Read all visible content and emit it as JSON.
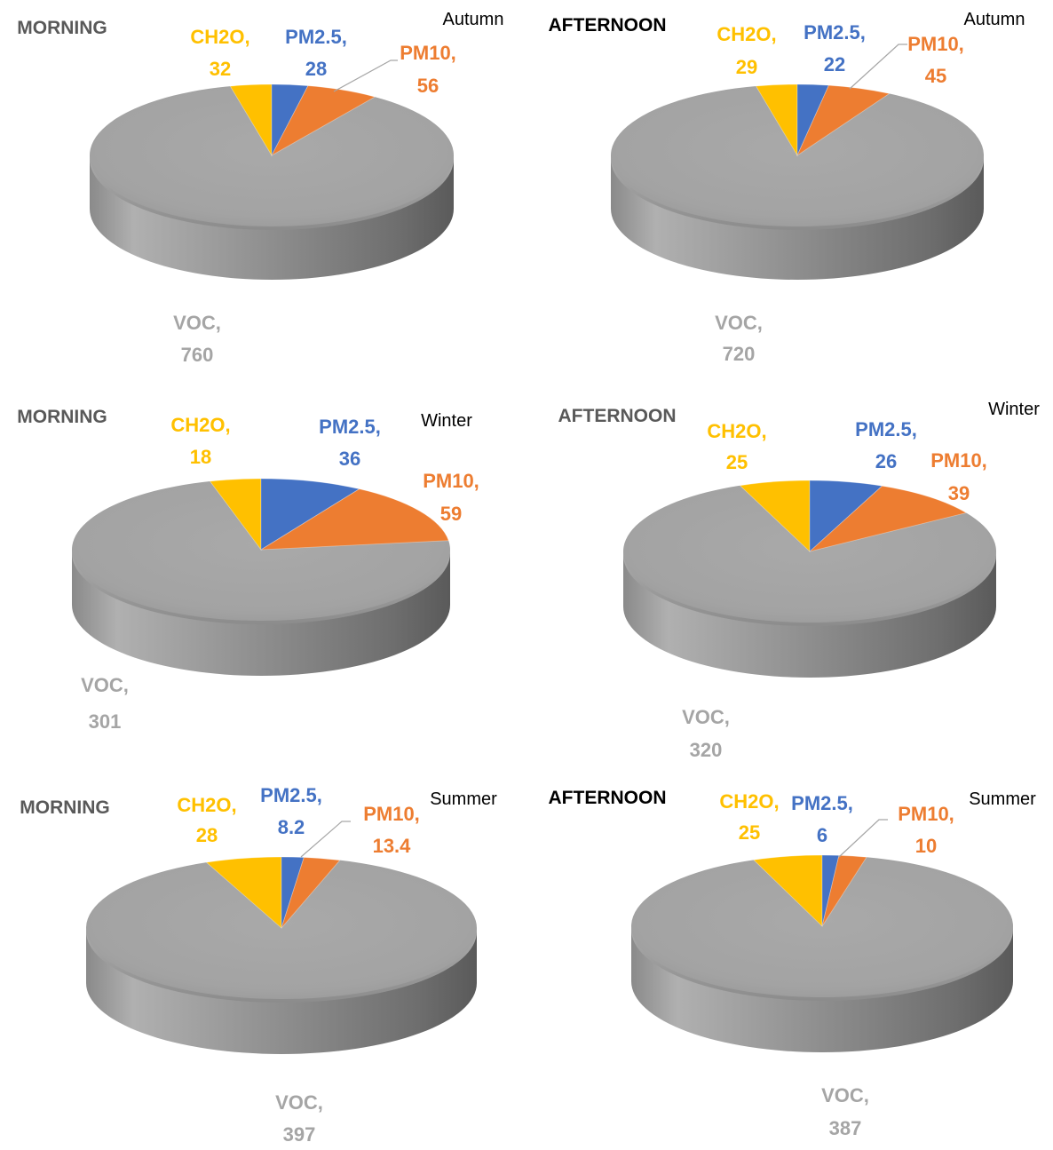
{
  "colors": {
    "VOC": "#a5a5a5",
    "CH2O": "#ffc000",
    "PM2.5": "#4472c4",
    "PM10": "#ed7d31",
    "period_label": "#595959",
    "period_label_bold": "#000000",
    "season_label": "#000000",
    "voc_label": "#a5a5a5"
  },
  "chart_data": [
    {
      "type": "pie",
      "period": "MORNING",
      "season": "Autumn",
      "slices": [
        {
          "name": "VOC",
          "value": 760,
          "label": "VOC,",
          "value_label": "760"
        },
        {
          "name": "CH2O",
          "value": 32,
          "label": "CH2O,",
          "value_label": "32"
        },
        {
          "name": "PM2.5",
          "value": 28,
          "label": "PM2.5,",
          "value_label": "28"
        },
        {
          "name": "PM10",
          "value": 56,
          "label": "PM10,",
          "value_label": "56"
        }
      ]
    },
    {
      "type": "pie",
      "period": "AFTERNOON",
      "season": "Autumn",
      "slices": [
        {
          "name": "VOC",
          "value": 720,
          "label": "VOC,",
          "value_label": "720"
        },
        {
          "name": "CH2O",
          "value": 29,
          "label": "CH2O,",
          "value_label": "29"
        },
        {
          "name": "PM2.5",
          "value": 22,
          "label": "PM2.5,",
          "value_label": "22"
        },
        {
          "name": "PM10",
          "value": 45,
          "label": "PM10,",
          "value_label": "45"
        }
      ]
    },
    {
      "type": "pie",
      "period": "MORNING",
      "season": "Winter",
      "slices": [
        {
          "name": "VOC",
          "value": 301,
          "label": "VOC,",
          "value_label": "301"
        },
        {
          "name": "CH2O",
          "value": 18,
          "label": "CH2O,",
          "value_label": "18"
        },
        {
          "name": "PM2.5",
          "value": 36,
          "label": "PM2.5,",
          "value_label": "36"
        },
        {
          "name": "PM10",
          "value": 59,
          "label": "PM10,",
          "value_label": "59"
        }
      ]
    },
    {
      "type": "pie",
      "period": "AFTERNOON",
      "season": "Winter",
      "slices": [
        {
          "name": "VOC",
          "value": 320,
          "label": "VOC,",
          "value_label": "320"
        },
        {
          "name": "CH2O",
          "value": 25,
          "label": "CH2O,",
          "value_label": "25"
        },
        {
          "name": "PM2.5",
          "value": 26,
          "label": "PM2.5,",
          "value_label": "26"
        },
        {
          "name": "PM10",
          "value": 39,
          "label": "PM10,",
          "value_label": "39"
        }
      ]
    },
    {
      "type": "pie",
      "period": "MORNING",
      "season": "Summer",
      "slices": [
        {
          "name": "VOC",
          "value": 397,
          "label": "VOC,",
          "value_label": "397"
        },
        {
          "name": "CH2O",
          "value": 28,
          "label": "CH2O,",
          "value_label": "28"
        },
        {
          "name": "PM2.5",
          "value": 8.2,
          "label": "PM2.5,",
          "value_label": "8.2"
        },
        {
          "name": "PM10",
          "value": 13.4,
          "label": "PM10,",
          "value_label": "13.4"
        }
      ]
    },
    {
      "type": "pie",
      "period": "AFTERNOON",
      "season": "Summer",
      "slices": [
        {
          "name": "VOC",
          "value": 387,
          "label": "VOC,",
          "value_label": "387"
        },
        {
          "name": "CH2O",
          "value": 25,
          "label": "CH2O,",
          "value_label": "25"
        },
        {
          "name": "PM2.5",
          "value": 6,
          "label": "PM2.5,",
          "value_label": "6"
        },
        {
          "name": "PM10",
          "value": 10,
          "label": "PM10,",
          "value_label": "10"
        }
      ]
    }
  ]
}
